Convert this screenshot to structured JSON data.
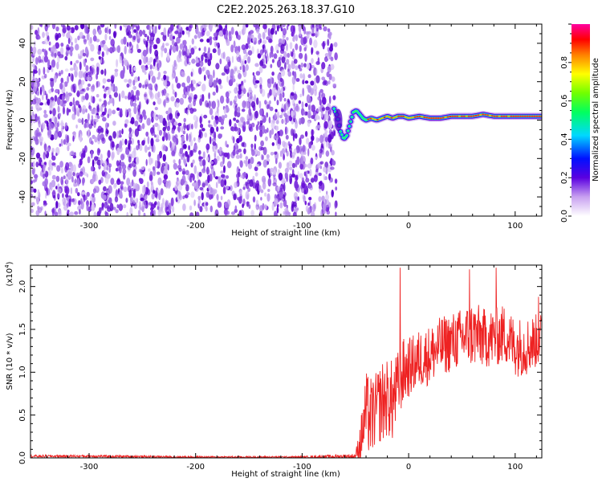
{
  "title": "C2E2.2025.263.18.37.G10",
  "colors": {
    "snr_line": "#ee2222",
    "track": "#ff2a1a",
    "noise": "#6a12d8",
    "noise_light": "#c8a8f0"
  },
  "chart_data": [
    {
      "type": "heatmap",
      "name": "spectrogram",
      "xlabel": "Height of straight line (km)",
      "ylabel": "Frequency (Hz)",
      "xlim": [
        -355,
        125
      ],
      "ylim": [
        -50,
        50
      ],
      "xticks": [
        -300,
        -200,
        -100,
        0,
        100
      ],
      "yticks": [
        -40,
        -20,
        0,
        20,
        40
      ],
      "noise_region_x": [
        -355,
        -68
      ],
      "signal_track": {
        "x": [
          -70,
          -67,
          -64,
          -61,
          -58,
          -55,
          -52,
          -49,
          -46,
          -43,
          -40,
          -35,
          -30,
          -25,
          -20,
          -15,
          -10,
          -5,
          0,
          10,
          20,
          30,
          40,
          50,
          60,
          70,
          80,
          90,
          100,
          110,
          125
        ],
        "y": [
          6,
          2,
          -6,
          -10,
          -8,
          -2,
          4,
          5,
          3,
          1,
          0,
          1,
          0,
          1,
          2,
          1,
          2,
          2,
          1,
          2,
          1,
          1,
          2,
          2,
          2,
          3,
          2,
          2,
          2,
          2,
          2
        ]
      },
      "colorbar": {
        "label": "Normalized spectral amplitude",
        "range": [
          0,
          1
        ],
        "ticks": [
          "0.0",
          "0.2",
          "0.4",
          "0.6",
          "0.8"
        ]
      }
    },
    {
      "type": "line",
      "name": "snr",
      "xlabel": "Height of straight line (km)",
      "ylabel": "SNR (10 * v/v)",
      "multiplier_label": "(x10",
      "multiplier_exp": "4",
      "xlim": [
        -355,
        125
      ],
      "ylim": [
        0,
        2.25
      ],
      "xticks": [
        -300,
        -200,
        -100,
        0,
        100
      ],
      "yticks": [
        "0.0",
        "0.5",
        "1.0",
        "1.5",
        "2.0"
      ],
      "envelope": {
        "x": [
          -355,
          -300,
          -200,
          -100,
          -50,
          -45,
          -40,
          -35,
          -30,
          -25,
          -20,
          -15,
          -10,
          -5,
          0,
          10,
          20,
          30,
          40,
          50,
          60,
          70,
          80,
          90,
          100,
          110,
          125
        ],
        "base": [
          0.02,
          0.02,
          0.01,
          0.01,
          0.02,
          0.2,
          0.55,
          0.45,
          0.6,
          0.65,
          0.7,
          0.65,
          0.85,
          1.0,
          1.05,
          1.15,
          1.2,
          1.3,
          1.35,
          1.4,
          1.45,
          1.4,
          1.4,
          1.45,
          1.3,
          1.3,
          1.4
        ],
        "noise": [
          0.015,
          0.015,
          0.01,
          0.01,
          0.03,
          0.25,
          0.45,
          0.5,
          0.4,
          0.5,
          0.45,
          0.5,
          0.4,
          0.4,
          0.35,
          0.35,
          0.35,
          0.35,
          0.35,
          0.35,
          0.4,
          0.35,
          0.35,
          0.35,
          0.35,
          0.35,
          0.3
        ]
      },
      "peaks": [
        {
          "x": -8,
          "y": 2.22
        },
        {
          "x": 57,
          "y": 2.2
        },
        {
          "x": 82,
          "y": 2.22
        },
        {
          "x": 122,
          "y": 1.88
        }
      ]
    }
  ]
}
